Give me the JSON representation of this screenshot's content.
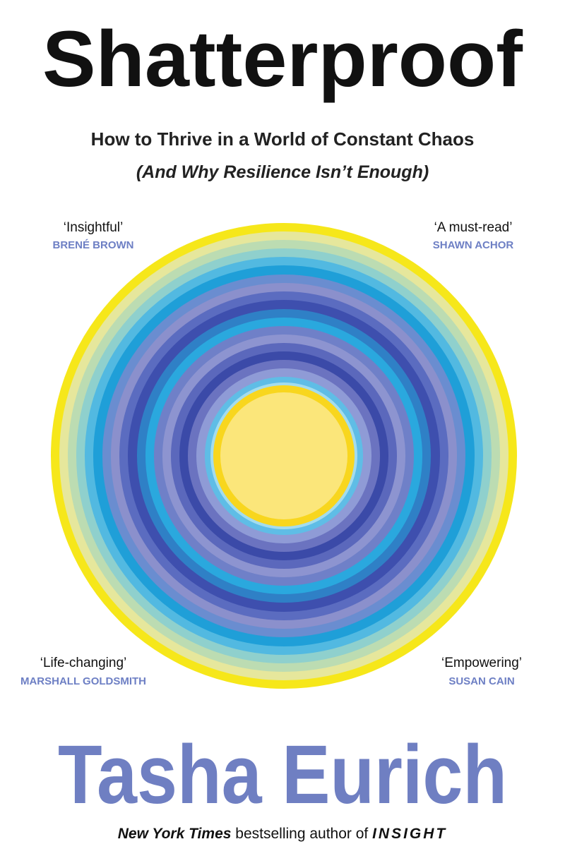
{
  "title": "Shatterproof",
  "subtitle": {
    "line1": "How to Thrive in a World of Constant Chaos",
    "line2": "(And Why Resilience Isn’t Enough)"
  },
  "quotes": [
    {
      "text": "‘Insightful’",
      "author": "BRENÉ BROWN"
    },
    {
      "text": "‘A must-read’",
      "author": "SHAWN ACHOR"
    },
    {
      "text": "‘Life-changing’",
      "author": "MARSHALL GOLDSMITH"
    },
    {
      "text": "‘Empowering’",
      "author": "SUSAN CAIN"
    }
  ],
  "author": "Tasha Eurich",
  "tagline": {
    "publication": "New York Times",
    "text": "bestselling author of",
    "book": "INSIGHT"
  }
}
